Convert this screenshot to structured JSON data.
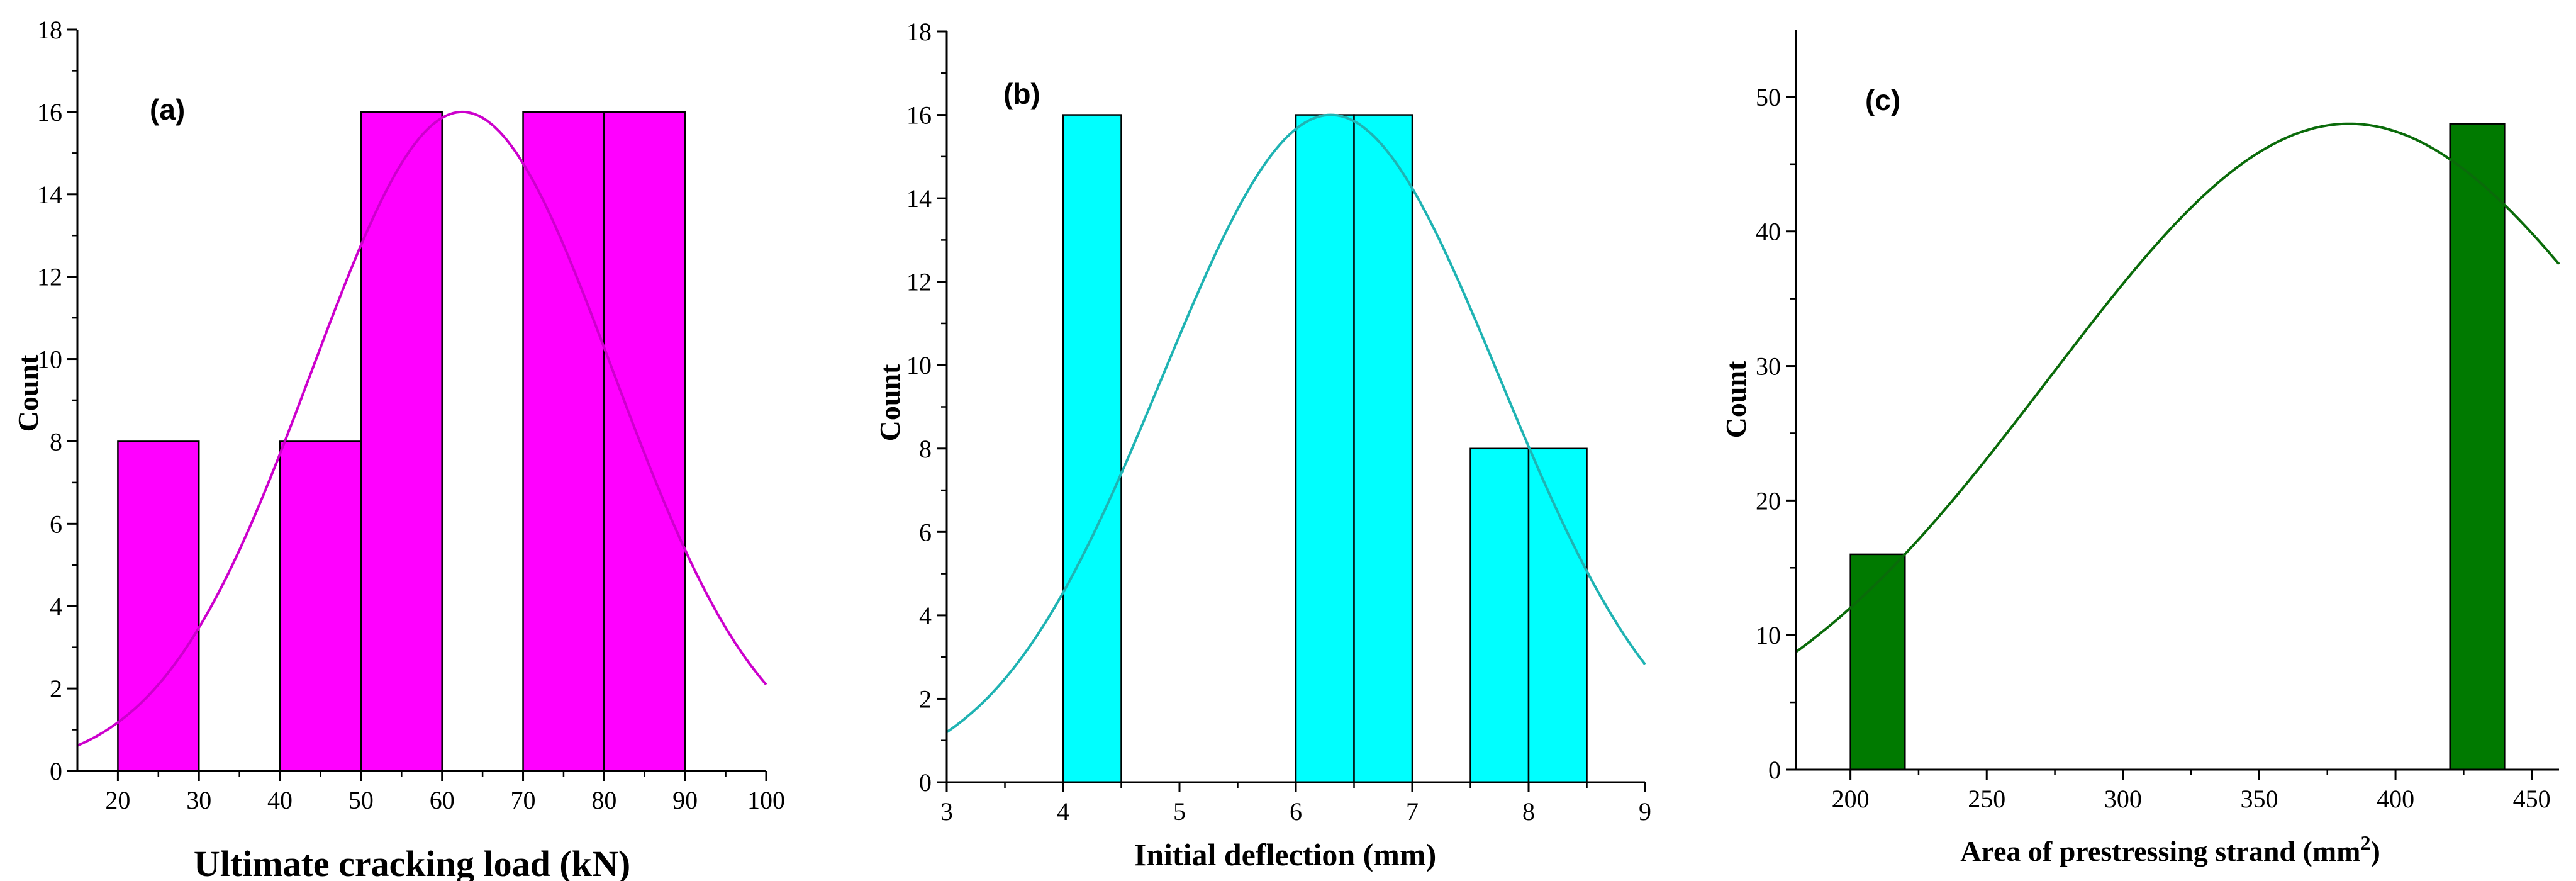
{
  "chart_data": [
    {
      "type": "bar",
      "panel_label": "(a)",
      "xlabel": "Ultimate cracking load (kN)",
      "ylabel": "Count",
      "xlim": [
        15,
        100
      ],
      "ylim": [
        0,
        18
      ],
      "xticks": [
        20,
        30,
        40,
        50,
        60,
        70,
        80,
        90,
        100
      ],
      "yticks": [
        0,
        2,
        4,
        6,
        8,
        10,
        12,
        14,
        16,
        18
      ],
      "bins": [
        {
          "x0": 20,
          "x1": 30,
          "count": 8
        },
        {
          "x0": 40,
          "x1": 50,
          "count": 8
        },
        {
          "x0": 50,
          "x1": 60,
          "count": 16
        },
        {
          "x0": 70,
          "x1": 80,
          "count": 16
        },
        {
          "x0": 80,
          "x1": 90,
          "count": 16
        }
      ],
      "fit": {
        "type": "normal",
        "mean": 62.5,
        "sd": 18.6,
        "peak": 16
      },
      "bar_color": "#ff00ff",
      "curve_color": "#cc00cc",
      "grid": false
    },
    {
      "type": "bar",
      "panel_label": "(b)",
      "xlabel": "Initial deflection (mm)",
      "ylabel": "Count",
      "xlim": [
        3,
        9
      ],
      "ylim": [
        0,
        18
      ],
      "xticks": [
        3,
        4,
        5,
        6,
        7,
        8,
        9
      ],
      "yticks": [
        0,
        2,
        4,
        6,
        8,
        10,
        12,
        14,
        16,
        18
      ],
      "bins": [
        {
          "x0": 4,
          "x1": 4.5,
          "count": 16
        },
        {
          "x0": 6,
          "x1": 6.5,
          "count": 16
        },
        {
          "x0": 6.5,
          "x1": 7,
          "count": 16
        },
        {
          "x0": 7.5,
          "x1": 8,
          "count": 8
        },
        {
          "x0": 8,
          "x1": 8.5,
          "count": 8
        }
      ],
      "fit": {
        "type": "normal",
        "mean": 6.3,
        "sd": 1.45,
        "peak": 16
      },
      "bar_color": "#00ffff",
      "curve_color": "#1fb3b3",
      "grid": false
    },
    {
      "type": "bar",
      "panel_label": "(c)",
      "xlabel": "Area of prestressing strand (mm",
      "xlabel_sup": "2",
      "xlabel_end": ")",
      "ylabel": "Count",
      "xlim": [
        180,
        460
      ],
      "ylim": [
        0,
        55
      ],
      "xticks": [
        200,
        250,
        300,
        350,
        400,
        450
      ],
      "yticks": [
        0,
        10,
        20,
        30,
        40,
        50
      ],
      "bins": [
        {
          "x0": 200,
          "x1": 220,
          "count": 16
        },
        {
          "x0": 420,
          "x1": 440,
          "count": 48
        }
      ],
      "fit": {
        "type": "normal",
        "mean": 383,
        "sd": 110,
        "peak": 48
      },
      "bar_color": "#007a00",
      "curve_color": "#0a6b0a",
      "grid": false
    }
  ]
}
